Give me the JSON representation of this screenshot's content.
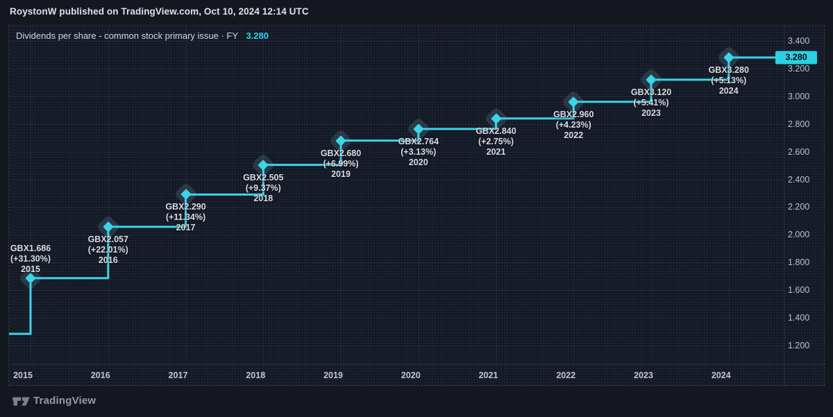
{
  "header": {
    "byline": "RoystonW published on TradingView.com, Oct 10, 2024 12:14 UTC"
  },
  "legend": {
    "title": "Dividends per share - common stock primary issue · FY",
    "value": "3.280"
  },
  "footer": {
    "brand": "TradingView",
    "logo": "tradingview-logo"
  },
  "colors": {
    "accent": "#3ad6e8",
    "badge_bg": "#2bd0e2",
    "badge_text": "#070b11",
    "background": "#141720",
    "panel_bg": "#141925",
    "label_text": "#dadce2",
    "axis_text": "#bec2cc",
    "grid": "rgba(150,165,200,0.075)",
    "halo": "rgba(98,138,160,0.26)"
  },
  "chart_data": {
    "type": "line",
    "subtype": "step-after",
    "title": "Dividends per share - common stock primary issue · FY",
    "unit": "GBX",
    "legend_position": "top-left",
    "grid": true,
    "x": [
      2015,
      2016,
      2017,
      2018,
      2019,
      2020,
      2021,
      2022,
      2023,
      2024
    ],
    "values": [
      1.686,
      2.057,
      2.29,
      2.505,
      2.68,
      2.764,
      2.84,
      2.96,
      3.12,
      3.28
    ],
    "pct_change": [
      31.3,
      22.01,
      11.34,
      9.37,
      6.99,
      3.13,
      2.75,
      4.23,
      5.41,
      5.13
    ],
    "entry_value": 1.284,
    "last_price_label": "3.280",
    "ylim": [
      1.06,
      3.51
    ],
    "yticks": [
      "3.400",
      "3.200",
      "3.000",
      "2.800",
      "2.600",
      "2.400",
      "2.200",
      "2.000",
      "1.800",
      "1.600",
      "1.400",
      "1.200"
    ],
    "xticks": [
      "2015",
      "2016",
      "2017",
      "2018",
      "2019",
      "2020",
      "2021",
      "2022",
      "2023",
      "2024"
    ],
    "points": [
      {
        "year": "2015",
        "value_label": "GBX1.686",
        "pct_label": "(+31.30%)",
        "label_position": "above"
      },
      {
        "year": "2016",
        "value_label": "GBX2.057",
        "pct_label": "(+22.01%)",
        "label_position": "below"
      },
      {
        "year": "2017",
        "value_label": "GBX2.290",
        "pct_label": "(+11.34%)",
        "label_position": "below"
      },
      {
        "year": "2018",
        "value_label": "GBX2.505",
        "pct_label": "(+9.37%)",
        "label_position": "below"
      },
      {
        "year": "2019",
        "value_label": "GBX2.680",
        "pct_label": "(+6.99%)",
        "label_position": "below"
      },
      {
        "year": "2020",
        "value_label": "GBX2.764",
        "pct_label": "(+3.13%)",
        "label_position": "below"
      },
      {
        "year": "2021",
        "value_label": "GBX2.840",
        "pct_label": "(+2.75%)",
        "label_position": "below"
      },
      {
        "year": "2022",
        "value_label": "GBX2.960",
        "pct_label": "(+4.23%)",
        "label_position": "below"
      },
      {
        "year": "2023",
        "value_label": "GBX3.120",
        "pct_label": "(+5.41%)",
        "label_position": "below"
      },
      {
        "year": "2024",
        "value_label": "GBX3.280",
        "pct_label": "(+5.13%)",
        "label_position": "below"
      }
    ]
  }
}
